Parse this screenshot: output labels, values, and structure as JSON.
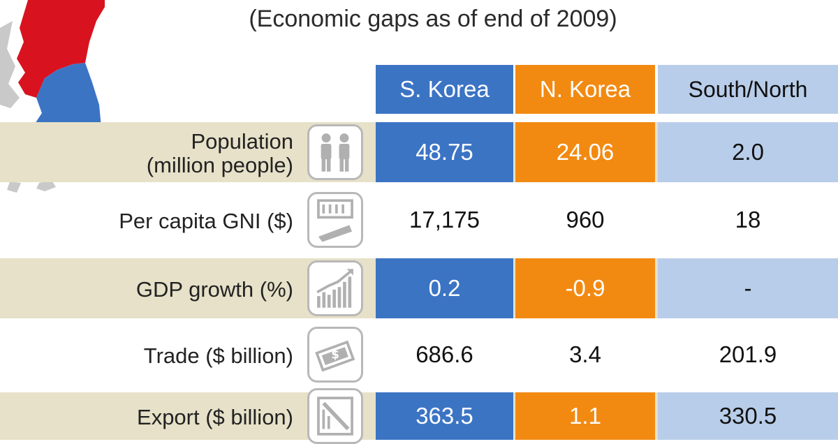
{
  "chart_data": {
    "type": "table",
    "title": "",
    "subtitle": "(Economic gaps as of end of 2009)",
    "columns": [
      "S. Korea",
      "N. Korea",
      "South/North"
    ],
    "rows": [
      {
        "label_line1": "Population",
        "label_line2": "(million people)",
        "icon": "people-icon",
        "values": [
          "48.75",
          "24.06",
          "2.0"
        ]
      },
      {
        "label_line1": "Per capita GNI ($)",
        "label_line2": "",
        "icon": "gni-icon",
        "values": [
          "17,175",
          "960",
          "18"
        ]
      },
      {
        "label_line1": "GDP growth (%)",
        "label_line2": "",
        "icon": "growth-chart-icon",
        "values": [
          "0.2",
          "-0.9",
          "-"
        ]
      },
      {
        "label_line1": "Trade ($ billion)",
        "label_line2": "",
        "icon": "money-icon",
        "values": [
          "686.6",
          "3.4",
          "201.9"
        ]
      },
      {
        "label_line1": "Export ($ billion)",
        "label_line2": "",
        "icon": "export-icon",
        "values": [
          "363.5",
          "1.1",
          "330.5"
        ]
      }
    ],
    "colors": {
      "s_korea": "#3c74c4",
      "n_korea": "#f28a12",
      "ratio": "#b8cde9",
      "row_band": "#e6e1c8"
    }
  }
}
